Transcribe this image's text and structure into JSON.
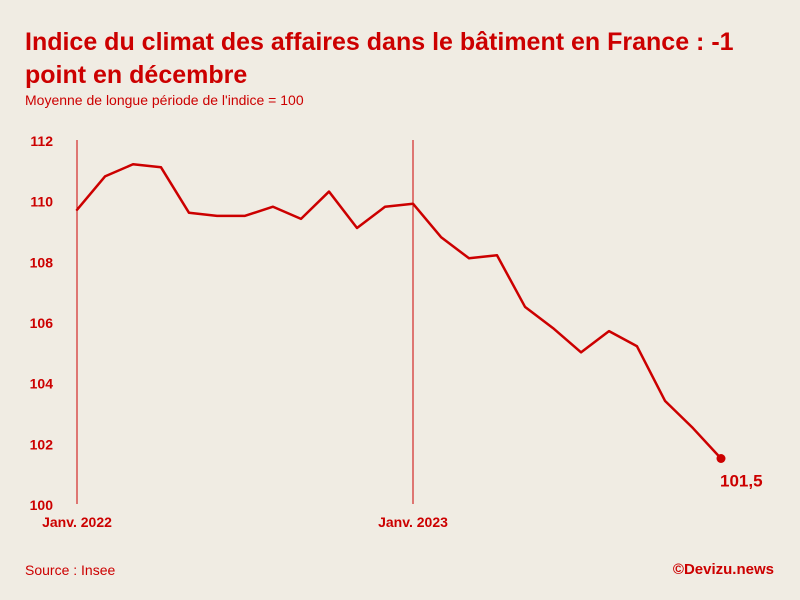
{
  "title": "Indice du climat des affaires dans le bâtiment en France : -1 point en décembre",
  "subtitle": "Moyenne de longue période de l'indice = 100",
  "source": "Source : Insee",
  "brand": "©Devizu.news",
  "colors": {
    "accent": "#cc0000",
    "background": "#f0ece3"
  },
  "chart_data": {
    "type": "line",
    "title": "Indice du climat des affaires dans le bâtiment en France : -1 point en décembre",
    "subtitle": "Moyenne de longue période de l'indice = 100",
    "xlabel": "",
    "ylabel": "",
    "ylim": [
      100,
      112
    ],
    "yticks": [
      100,
      102,
      104,
      106,
      108,
      110,
      112
    ],
    "xtick_labels": [
      {
        "index": 0,
        "label": "Janv. 2022"
      },
      {
        "index": 12,
        "label": "Janv. 2023"
      }
    ],
    "grid": false,
    "series": [
      {
        "values": [
          109.7,
          110.8,
          111.2,
          111.1,
          109.6,
          109.5,
          109.5,
          109.8,
          109.4,
          110.3,
          109.1,
          109.8,
          109.9,
          108.8,
          108.1,
          108.2,
          106.5,
          105.8,
          105.0,
          105.7,
          105.2,
          103.4,
          102.5,
          101.5
        ]
      }
    ],
    "last_value_label": "101,5"
  }
}
